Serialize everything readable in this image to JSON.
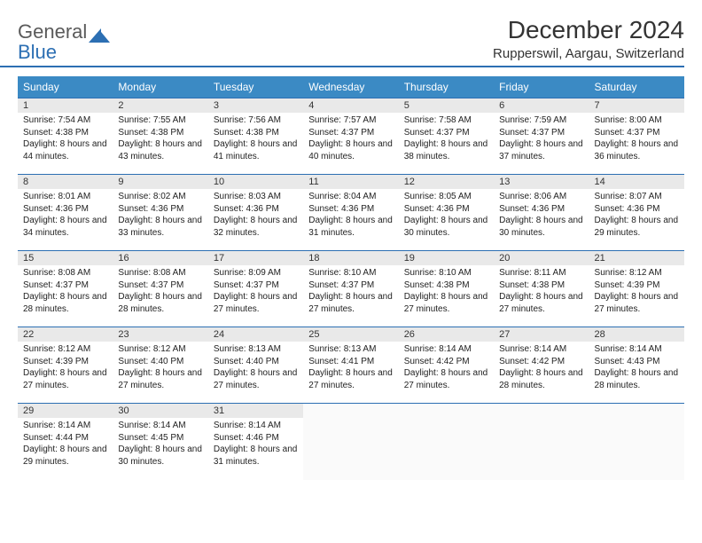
{
  "brand": {
    "line1": "General",
    "line2": "Blue"
  },
  "title": "December 2024",
  "location": "Rupperswil, Aargau, Switzerland",
  "colors": {
    "header_bg": "#3b8ac4",
    "header_text": "#ffffff",
    "rule": "#2c6fb3",
    "daynum_bg": "#e9e9e9",
    "text": "#222222",
    "logo_gray": "#5a5a5a",
    "logo_blue": "#2c6fb3"
  },
  "weekdays": [
    "Sunday",
    "Monday",
    "Tuesday",
    "Wednesday",
    "Thursday",
    "Friday",
    "Saturday"
  ],
  "weeks": [
    [
      {
        "n": "1",
        "sr": "7:54 AM",
        "ss": "4:38 PM",
        "dl": "8 hours and 44 minutes."
      },
      {
        "n": "2",
        "sr": "7:55 AM",
        "ss": "4:38 PM",
        "dl": "8 hours and 43 minutes."
      },
      {
        "n": "3",
        "sr": "7:56 AM",
        "ss": "4:38 PM",
        "dl": "8 hours and 41 minutes."
      },
      {
        "n": "4",
        "sr": "7:57 AM",
        "ss": "4:37 PM",
        "dl": "8 hours and 40 minutes."
      },
      {
        "n": "5",
        "sr": "7:58 AM",
        "ss": "4:37 PM",
        "dl": "8 hours and 38 minutes."
      },
      {
        "n": "6",
        "sr": "7:59 AM",
        "ss": "4:37 PM",
        "dl": "8 hours and 37 minutes."
      },
      {
        "n": "7",
        "sr": "8:00 AM",
        "ss": "4:37 PM",
        "dl": "8 hours and 36 minutes."
      }
    ],
    [
      {
        "n": "8",
        "sr": "8:01 AM",
        "ss": "4:36 PM",
        "dl": "8 hours and 34 minutes."
      },
      {
        "n": "9",
        "sr": "8:02 AM",
        "ss": "4:36 PM",
        "dl": "8 hours and 33 minutes."
      },
      {
        "n": "10",
        "sr": "8:03 AM",
        "ss": "4:36 PM",
        "dl": "8 hours and 32 minutes."
      },
      {
        "n": "11",
        "sr": "8:04 AM",
        "ss": "4:36 PM",
        "dl": "8 hours and 31 minutes."
      },
      {
        "n": "12",
        "sr": "8:05 AM",
        "ss": "4:36 PM",
        "dl": "8 hours and 30 minutes."
      },
      {
        "n": "13",
        "sr": "8:06 AM",
        "ss": "4:36 PM",
        "dl": "8 hours and 30 minutes."
      },
      {
        "n": "14",
        "sr": "8:07 AM",
        "ss": "4:36 PM",
        "dl": "8 hours and 29 minutes."
      }
    ],
    [
      {
        "n": "15",
        "sr": "8:08 AM",
        "ss": "4:37 PM",
        "dl": "8 hours and 28 minutes."
      },
      {
        "n": "16",
        "sr": "8:08 AM",
        "ss": "4:37 PM",
        "dl": "8 hours and 28 minutes."
      },
      {
        "n": "17",
        "sr": "8:09 AM",
        "ss": "4:37 PM",
        "dl": "8 hours and 27 minutes."
      },
      {
        "n": "18",
        "sr": "8:10 AM",
        "ss": "4:37 PM",
        "dl": "8 hours and 27 minutes."
      },
      {
        "n": "19",
        "sr": "8:10 AM",
        "ss": "4:38 PM",
        "dl": "8 hours and 27 minutes."
      },
      {
        "n": "20",
        "sr": "8:11 AM",
        "ss": "4:38 PM",
        "dl": "8 hours and 27 minutes."
      },
      {
        "n": "21",
        "sr": "8:12 AM",
        "ss": "4:39 PM",
        "dl": "8 hours and 27 minutes."
      }
    ],
    [
      {
        "n": "22",
        "sr": "8:12 AM",
        "ss": "4:39 PM",
        "dl": "8 hours and 27 minutes."
      },
      {
        "n": "23",
        "sr": "8:12 AM",
        "ss": "4:40 PM",
        "dl": "8 hours and 27 minutes."
      },
      {
        "n": "24",
        "sr": "8:13 AM",
        "ss": "4:40 PM",
        "dl": "8 hours and 27 minutes."
      },
      {
        "n": "25",
        "sr": "8:13 AM",
        "ss": "4:41 PM",
        "dl": "8 hours and 27 minutes."
      },
      {
        "n": "26",
        "sr": "8:14 AM",
        "ss": "4:42 PM",
        "dl": "8 hours and 27 minutes."
      },
      {
        "n": "27",
        "sr": "8:14 AM",
        "ss": "4:42 PM",
        "dl": "8 hours and 28 minutes."
      },
      {
        "n": "28",
        "sr": "8:14 AM",
        "ss": "4:43 PM",
        "dl": "8 hours and 28 minutes."
      }
    ],
    [
      {
        "n": "29",
        "sr": "8:14 AM",
        "ss": "4:44 PM",
        "dl": "8 hours and 29 minutes."
      },
      {
        "n": "30",
        "sr": "8:14 AM",
        "ss": "4:45 PM",
        "dl": "8 hours and 30 minutes."
      },
      {
        "n": "31",
        "sr": "8:14 AM",
        "ss": "4:46 PM",
        "dl": "8 hours and 31 minutes."
      },
      null,
      null,
      null,
      null
    ]
  ],
  "labels": {
    "sunrise": "Sunrise:",
    "sunset": "Sunset:",
    "daylight": "Daylight:"
  }
}
